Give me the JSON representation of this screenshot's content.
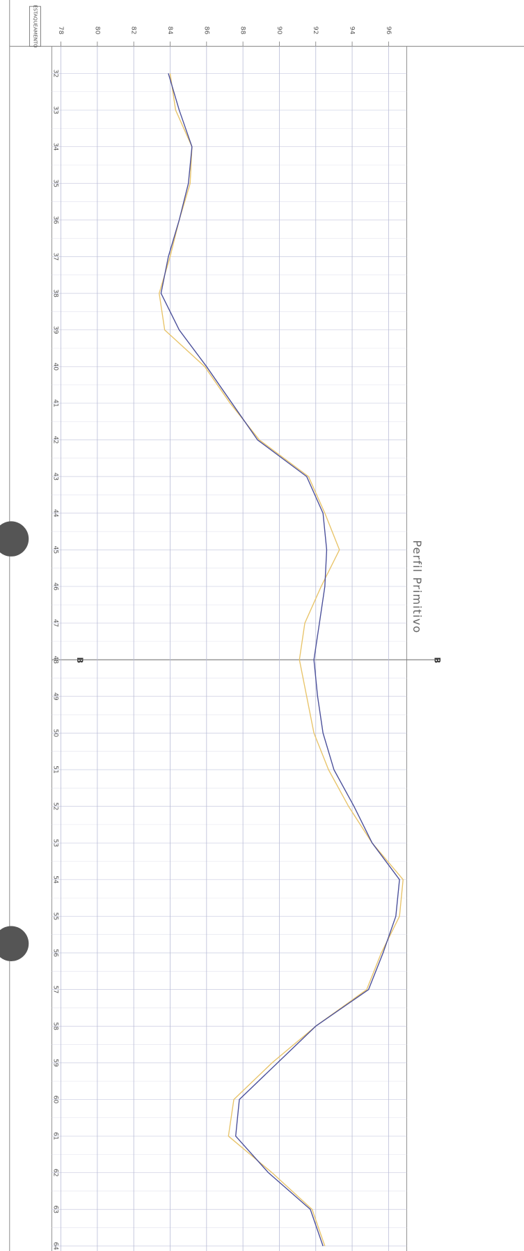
{
  "chart_data": {
    "type": "line",
    "header": "ESTAQUEAMENTO",
    "annotation": "Perfil Primitivo",
    "section_marks": [
      "B",
      "B"
    ],
    "categories": [
      "32",
      "33",
      "34",
      "35",
      "36",
      "37",
      "38",
      "39",
      "40",
      "41",
      "42",
      "43",
      "44",
      "45",
      "46",
      "47",
      "48",
      "49",
      "50",
      "51",
      "52",
      "53",
      "54",
      "55",
      "56",
      "57",
      "58",
      "59",
      "60",
      "61",
      "62",
      "63",
      "64"
    ],
    "series": [
      {
        "color": "#4a4f9a",
        "values": [
          83.9,
          84.5,
          85.2,
          85.0,
          84.5,
          83.9,
          83.5,
          84.5,
          86.0,
          87.4,
          88.8,
          91.5,
          92.4,
          92.6,
          92.5,
          92.2,
          91.9,
          92.1,
          92.4,
          93.0,
          94.1,
          95.1,
          96.6,
          96.4,
          95.7,
          94.9,
          92.0,
          89.9,
          87.8,
          87.6,
          89.4,
          91.7,
          92.4
        ]
      },
      {
        "color": "#e8c46a",
        "values": [
          84.0,
          84.3,
          85.2,
          85.1,
          84.5,
          84.0,
          83.4,
          83.7,
          85.9,
          87.3,
          88.9,
          91.6,
          92.5,
          93.3,
          92.3,
          91.4,
          91.1,
          91.5,
          91.9,
          92.7,
          93.8,
          95.1,
          96.8,
          96.6,
          95.6,
          94.8,
          92.0,
          89.6,
          87.5,
          87.2,
          89.6,
          91.8,
          92.5
        ]
      }
    ],
    "xlim": [
      77.5,
      97
    ],
    "xticks": [
      78,
      80,
      82,
      84,
      86,
      88,
      90,
      92,
      94,
      96
    ],
    "grid": true
  }
}
